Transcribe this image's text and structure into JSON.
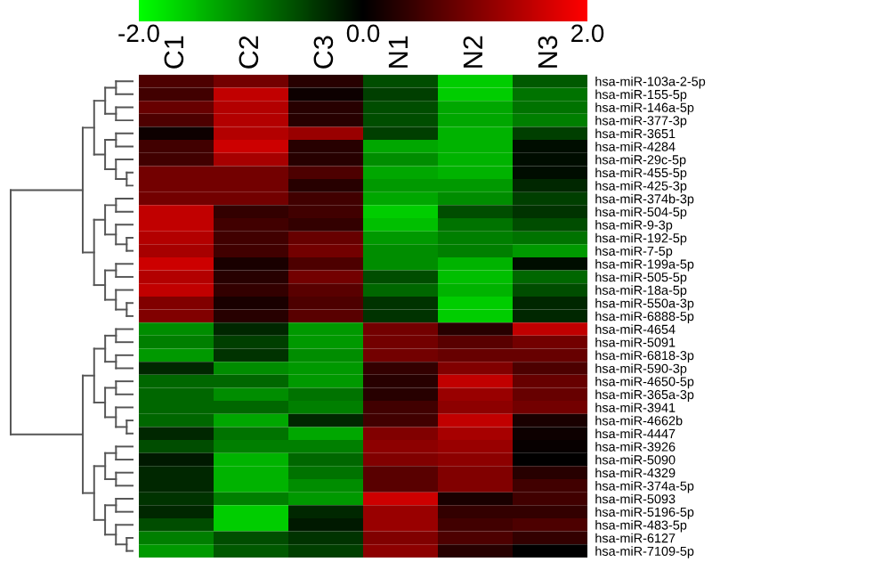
{
  "chart_data": {
    "type": "heatmap",
    "categories": [
      "C1",
      "C2",
      "C3",
      "N1",
      "N2",
      "N3"
    ],
    "y_categories": [
      "hsa-miR-103a-2-5p",
      "hsa-miR-155-5p",
      "hsa-miR-146a-5p",
      "hsa-miR-377-3p",
      "hsa-miR-3651",
      "hsa-miR-4284",
      "hsa-miR-29c-5p",
      "hsa-miR-455-5p",
      "hsa-miR-425-3p",
      "hsa-miR-374b-3p",
      "hsa-miR-504-5p",
      "hsa-miR-9-3p",
      "hsa-miR-192-5p",
      "hsa-miR-7-5p",
      "hsa-miR-199a-5p",
      "hsa-miR-505-5p",
      "hsa-miR-18a-5p",
      "hsa-miR-550a-3p",
      "hsa-miR-6888-5p",
      "hsa-miR-4654",
      "hsa-miR-5091",
      "hsa-miR-6818-3p",
      "hsa-miR-590-3p",
      "hsa-miR-4650-5p",
      "hsa-miR-365a-3p",
      "hsa-miR-3941",
      "hsa-miR-4662b",
      "hsa-miR-4447",
      "hsa-miR-3926",
      "hsa-miR-5090",
      "hsa-miR-4329",
      "hsa-miR-374a-5p",
      "hsa-miR-5093",
      "hsa-miR-5196-5p",
      "hsa-miR-483-5p",
      "hsa-miR-6127",
      "hsa-miR-7109-5p"
    ],
    "cells": [
      [
        0.6,
        0.9,
        0.3,
        -0.6,
        -1.6,
        -0.7
      ],
      [
        0.5,
        1.5,
        0.1,
        -0.5,
        -1.6,
        -0.9
      ],
      [
        0.8,
        1.4,
        0.3,
        -0.6,
        -1.3,
        -0.9
      ],
      [
        0.6,
        1.4,
        0.3,
        -0.6,
        -1.3,
        -1.0
      ],
      [
        0.1,
        1.4,
        1.2,
        -0.5,
        -1.4,
        -0.5
      ],
      [
        0.5,
        1.6,
        0.3,
        -1.3,
        -1.4,
        -0.1
      ],
      [
        0.5,
        1.3,
        0.3,
        -1.1,
        -1.4,
        -0.1
      ],
      [
        0.9,
        0.9,
        0.6,
        -1.3,
        -1.4,
        -0.1
      ],
      [
        0.9,
        0.9,
        0.3,
        -1.2,
        -1.2,
        -0.3
      ],
      [
        0.9,
        0.9,
        0.5,
        -1.3,
        -1.1,
        -0.5
      ],
      [
        1.5,
        0.4,
        0.5,
        -1.6,
        -0.6,
        -0.4
      ],
      [
        1.5,
        0.5,
        0.4,
        -1.5,
        -0.9,
        -0.6
      ],
      [
        1.4,
        0.5,
        0.8,
        -1.2,
        -1.0,
        -0.9
      ],
      [
        1.3,
        0.5,
        0.9,
        -1.1,
        -1.0,
        -1.2
      ],
      [
        1.6,
        0.2,
        0.6,
        -1.1,
        -1.4,
        -0.1
      ],
      [
        1.4,
        0.3,
        0.9,
        -0.6,
        -1.5,
        -0.8
      ],
      [
        1.5,
        0.4,
        0.7,
        -0.8,
        -1.4,
        -0.6
      ],
      [
        1.0,
        0.2,
        0.6,
        -0.4,
        -1.6,
        -0.3
      ],
      [
        1.0,
        0.3,
        0.7,
        -0.4,
        -1.6,
        -0.3
      ],
      [
        -1.1,
        -0.3,
        -1.2,
        0.9,
        0.3,
        1.5
      ],
      [
        -1.0,
        -0.5,
        -1.2,
        0.9,
        0.7,
        0.9
      ],
      [
        -1.2,
        -0.4,
        -1.1,
        0.9,
        0.8,
        0.8
      ],
      [
        -0.3,
        -1.1,
        -1.2,
        0.4,
        1.0,
        0.6
      ],
      [
        -0.8,
        -0.8,
        -1.2,
        0.3,
        1.5,
        0.8
      ],
      [
        -0.8,
        -1.1,
        -0.9,
        0.3,
        1.2,
        0.8
      ],
      [
        -0.8,
        -0.8,
        -1.0,
        0.5,
        1.1,
        0.9
      ],
      [
        -0.8,
        -1.3,
        -0.3,
        0.5,
        1.5,
        0.2
      ],
      [
        -0.3,
        -0.9,
        -1.3,
        1.0,
        1.3,
        0.1
      ],
      [
        -0.6,
        -1.0,
        -1.0,
        1.1,
        1.2,
        0.05
      ],
      [
        -0.2,
        -1.4,
        -0.8,
        1.0,
        1.1,
        0.0
      ],
      [
        -0.3,
        -1.4,
        -0.9,
        0.7,
        1.0,
        0.3
      ],
      [
        -0.3,
        -1.4,
        -1.1,
        0.7,
        1.0,
        0.5
      ],
      [
        -0.4,
        -1.0,
        -1.2,
        1.6,
        0.2,
        0.5
      ],
      [
        -0.3,
        -1.6,
        -0.3,
        1.2,
        0.4,
        0.4
      ],
      [
        -0.6,
        -1.6,
        -0.2,
        1.2,
        0.5,
        0.6
      ],
      [
        -1.0,
        -0.6,
        -0.4,
        1.0,
        0.6,
        0.4
      ],
      [
        -1.2,
        -0.7,
        -0.5,
        1.1,
        0.3,
        0.0
      ]
    ],
    "clim": [
      -2.0,
      2.0
    ],
    "cticks": [
      {
        "value": -2.0,
        "label": "-2.0"
      },
      {
        "value": 0.0,
        "label": "0.0"
      },
      {
        "value": 2.0,
        "label": "2.0"
      }
    ]
  }
}
